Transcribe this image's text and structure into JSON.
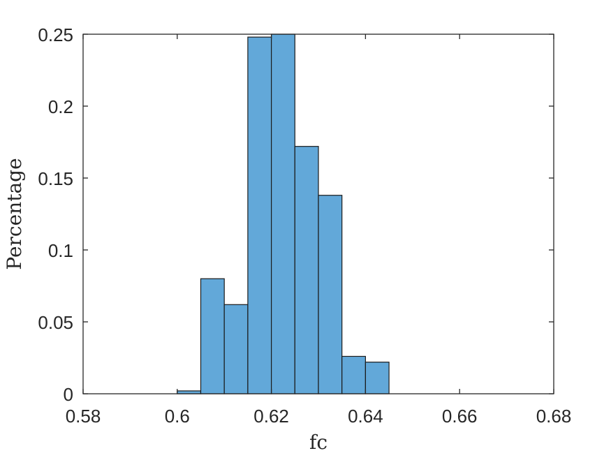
{
  "chart_data": {
    "type": "bar",
    "subtype": "histogram",
    "xlabel": "fc",
    "ylabel": "Percentage",
    "xlim": [
      0.58,
      0.68
    ],
    "ylim": [
      0,
      0.25
    ],
    "xticks": [
      0.58,
      0.6,
      0.62,
      0.64,
      0.66,
      0.68
    ],
    "xtick_labels": [
      "0.58",
      "0.6",
      "0.62",
      "0.64",
      "0.66",
      "0.68"
    ],
    "yticks": [
      0,
      0.05,
      0.1,
      0.15,
      0.2,
      0.25
    ],
    "ytick_labels": [
      "0",
      "0.05",
      "0.1",
      "0.15",
      "0.2",
      "0.25"
    ],
    "bin_width": 0.005,
    "bins": [
      {
        "start": 0.6,
        "end": 0.605,
        "value": 0.002
      },
      {
        "start": 0.605,
        "end": 0.61,
        "value": 0.08
      },
      {
        "start": 0.61,
        "end": 0.615,
        "value": 0.062
      },
      {
        "start": 0.615,
        "end": 0.62,
        "value": 0.248
      },
      {
        "start": 0.62,
        "end": 0.625,
        "value": 0.25
      },
      {
        "start": 0.625,
        "end": 0.63,
        "value": 0.172
      },
      {
        "start": 0.63,
        "end": 0.635,
        "value": 0.138
      },
      {
        "start": 0.635,
        "end": 0.64,
        "value": 0.026
      },
      {
        "start": 0.64,
        "end": 0.645,
        "value": 0.022
      }
    ],
    "grid": false,
    "bar_color": "#62a8d9",
    "edge_color": "#1a1a1a"
  }
}
